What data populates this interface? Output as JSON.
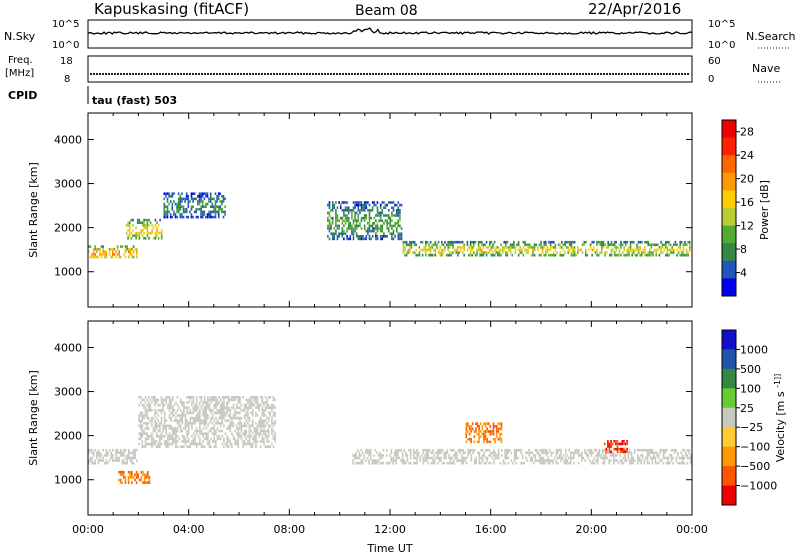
{
  "header": {
    "station": "Kapuskasing (fitACF)",
    "beam": "Beam 08",
    "date": "22/Apr/2016"
  },
  "nsky_panel": {
    "label": "N.Sky",
    "left_ticks": [
      "10^5",
      "10^0"
    ],
    "right_ticks": [
      "10^5",
      "10^0"
    ],
    "right_label": "N.Search"
  },
  "freq_panel": {
    "label_line1": "Freq.",
    "label_line2": "[MHz]",
    "left_ticks": [
      "18",
      "8"
    ],
    "right_ticks": [
      "60",
      "0"
    ],
    "right_label": "Nave"
  },
  "cpid": {
    "label": "CPID",
    "mode": "tau (fast) 503"
  },
  "colors": {
    "power": [
      "#0000ee",
      "#2255bb",
      "#338844",
      "#55aa33",
      "#bbcc33",
      "#ffcc00",
      "#ff9900",
      "#ff6600",
      "#ff2200",
      "#ee0000"
    ],
    "velocity_scale": [
      "#ee0000",
      "#ff5500",
      "#ff9900",
      "#ffcc33",
      "#c8c8c0",
      "#66cc33",
      "#338844",
      "#2255aa",
      "#1111cc"
    ],
    "ground_scatter": "#c8c8c0"
  },
  "chart_data": [
    {
      "type": "heatmap",
      "title": "Power",
      "xlabel": "",
      "ylabel": "Slant Range [km]",
      "xlim": [
        "00:00",
        "24:00"
      ],
      "ylim": [
        200,
        4600
      ],
      "y_ticks": [
        "1000",
        "2000",
        "3000",
        "4000"
      ],
      "colorbar": {
        "label": "Power [dB]",
        "ticks": [
          "4",
          "8",
          "12",
          "16",
          "20",
          "24",
          "28"
        ],
        "range": [
          0,
          30
        ]
      },
      "bands": [
        {
          "time_start_h": 0.0,
          "time_end_h": 2.0,
          "range_start_km": 1300,
          "range_end_km": 1600,
          "value_db": 22
        },
        {
          "time_start_h": 1.5,
          "time_end_h": 3.0,
          "range_start_km": 1700,
          "range_end_km": 2200,
          "value_db": 18
        },
        {
          "time_start_h": 3.0,
          "time_end_h": 5.5,
          "range_start_km": 2200,
          "range_end_km": 2800,
          "value_db": 8
        },
        {
          "time_start_h": 9.5,
          "time_end_h": 12.5,
          "range_start_km": 1700,
          "range_end_km": 2600,
          "value_db": 10
        },
        {
          "time_start_h": 12.5,
          "time_end_h": 24.0,
          "range_start_km": 1300,
          "range_end_km": 1700,
          "value_db": 16
        }
      ]
    },
    {
      "type": "heatmap",
      "title": "Velocity",
      "xlabel": "Time UT",
      "ylabel": "Slant Range [km]",
      "xlim": [
        "00:00",
        "24:00"
      ],
      "ylim": [
        200,
        4600
      ],
      "x_ticks": [
        "00:00",
        "04:00",
        "08:00",
        "12:00",
        "16:00",
        "20:00",
        "00:00"
      ],
      "y_ticks": [
        "1000",
        "2000",
        "3000",
        "4000"
      ],
      "colorbar": {
        "label": "Velocity [m s^-1]",
        "ticks": [
          "1000",
          "500",
          "100",
          "25",
          "−25",
          "−100",
          "−500",
          "−1000"
        ]
      },
      "bands": [
        {
          "time_start_h": 0.0,
          "time_end_h": 2.0,
          "range_start_km": 1300,
          "range_end_km": 1700,
          "value_ms": 0
        },
        {
          "time_start_h": 1.2,
          "time_end_h": 2.5,
          "range_start_km": 900,
          "range_end_km": 1200,
          "value_ms": -500
        },
        {
          "time_start_h": 2.0,
          "time_end_h": 7.5,
          "range_start_km": 1700,
          "range_end_km": 2900,
          "value_ms": 0
        },
        {
          "time_start_h": 10.5,
          "time_end_h": 24.0,
          "range_start_km": 1300,
          "range_end_km": 1700,
          "value_ms": 0
        },
        {
          "time_start_h": 15.0,
          "time_end_h": 16.5,
          "range_start_km": 1800,
          "range_end_km": 2300,
          "value_ms": -500
        },
        {
          "time_start_h": 20.5,
          "time_end_h": 21.5,
          "range_start_km": 1600,
          "range_end_km": 1900,
          "value_ms": -1000
        }
      ]
    }
  ]
}
